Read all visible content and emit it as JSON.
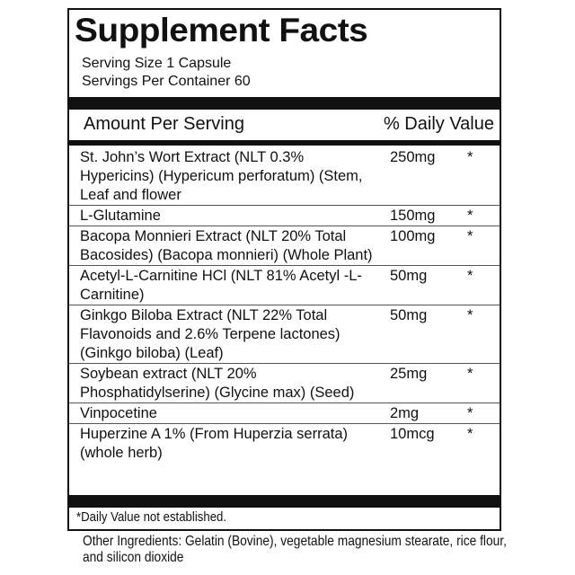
{
  "title": "Supplement Facts",
  "serving_size": "Serving Size 1 Capsule",
  "servings_per_container": "Servings Per Container 60",
  "header": {
    "amount": "Amount Per Serving",
    "daily_value": "% Daily Value"
  },
  "ingredients": [
    {
      "name": "St. John’s Wort Extract (NLT 0.3% Hypericins) (Hypericum perforatum) (Stem, Leaf and flower",
      "amount": "250mg",
      "dv": "*"
    },
    {
      "name": "L-Glutamine",
      "amount": "150mg",
      "dv": "*"
    },
    {
      "name": "Bacopa Monnieri Extract (NLT 20% Total Bacosides) (Bacopa monnieri) (Whole Plant)",
      "amount": "100mg",
      "dv": "*"
    },
    {
      "name": "Acetyl-L-Carnitine HCl (NLT 81% Acetyl -L-Carnitine)",
      "amount": "50mg",
      "dv": "*"
    },
    {
      "name": "Ginkgo Biloba Extract (NLT 22% Total Flavonoids and 2.6% Terpene lactones) (Ginkgo biloba) (Leaf)",
      "amount": "50mg",
      "dv": "*"
    },
    {
      "name": "Soybean extract (NLT 20% Phosphatidylserine) (Glycine max) (Seed)",
      "amount": "25mg",
      "dv": "*"
    },
    {
      "name": "Vinpocetine",
      "amount": "2mg",
      "dv": "*"
    },
    {
      "name": "Huperzine A 1% (From Huperzia serrata) (whole herb)",
      "amount": "10mcg",
      "dv": "*"
    }
  ],
  "footnote": "*Daily Value not established.",
  "other_ingredients": "Other Ingredients: Gelatin (Bovine), vegetable magnesium stearate, rice flour, and silicon dioxide"
}
